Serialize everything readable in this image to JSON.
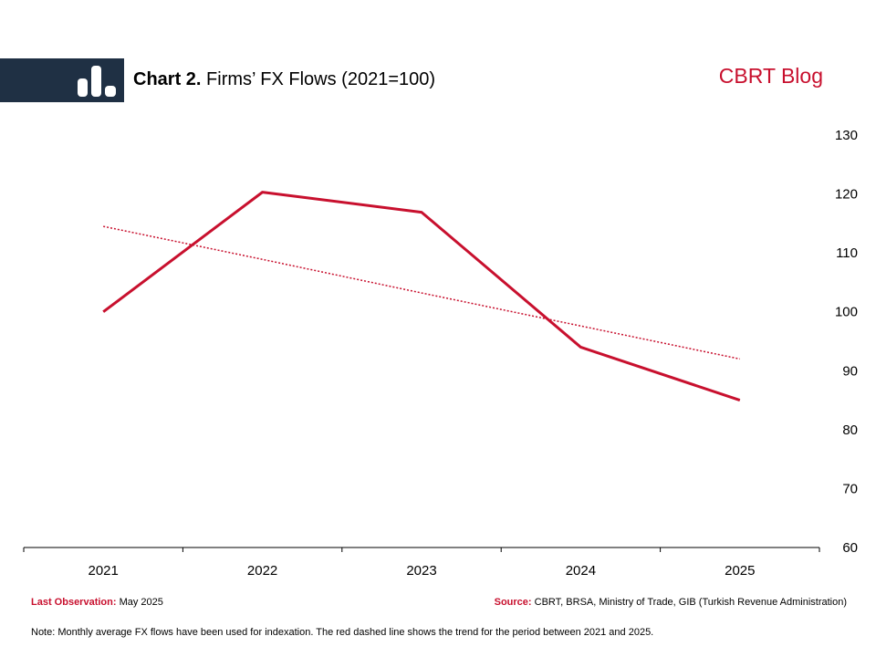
{
  "header": {
    "title_label": "Chart 2.",
    "title_text": "Firms’ FX Flows",
    "title_unit": "(2021=100)",
    "brand": "CBRT Blog"
  },
  "chart_data": {
    "type": "line",
    "categories": [
      "2021",
      "2022",
      "2023",
      "2024",
      "2025"
    ],
    "series": [
      {
        "name": "",
        "values": [
          100,
          120.3,
          116.9,
          94,
          85
        ],
        "color": "#c8102e",
        "style": "solid"
      },
      {
        "name": "",
        "values": [
          114.5,
          108.9,
          103.2,
          97.6,
          92
        ],
        "color": "#c8102e",
        "style": "dotted"
      }
    ],
    "yticks": [
      60,
      70,
      80,
      90,
      100,
      110,
      120,
      130
    ],
    "ylim": [
      60,
      130
    ],
    "y_axis_side": "right",
    "grid": false,
    "legend": "none"
  },
  "footer": {
    "last_obs_label": "Last Observation:",
    "last_obs_value": "May 2025",
    "source_label": "Source:",
    "source_value": "CBRT, BRSA, Ministry of Trade, GIB (Turkish Revenue Administration)",
    "note": "Note: Monthly average FX flows have been used for indexation. The red dashed line shows the trend for the period between 2021 and 2025."
  },
  "colors": {
    "accent": "#c8102e",
    "band": "#1f3044"
  }
}
